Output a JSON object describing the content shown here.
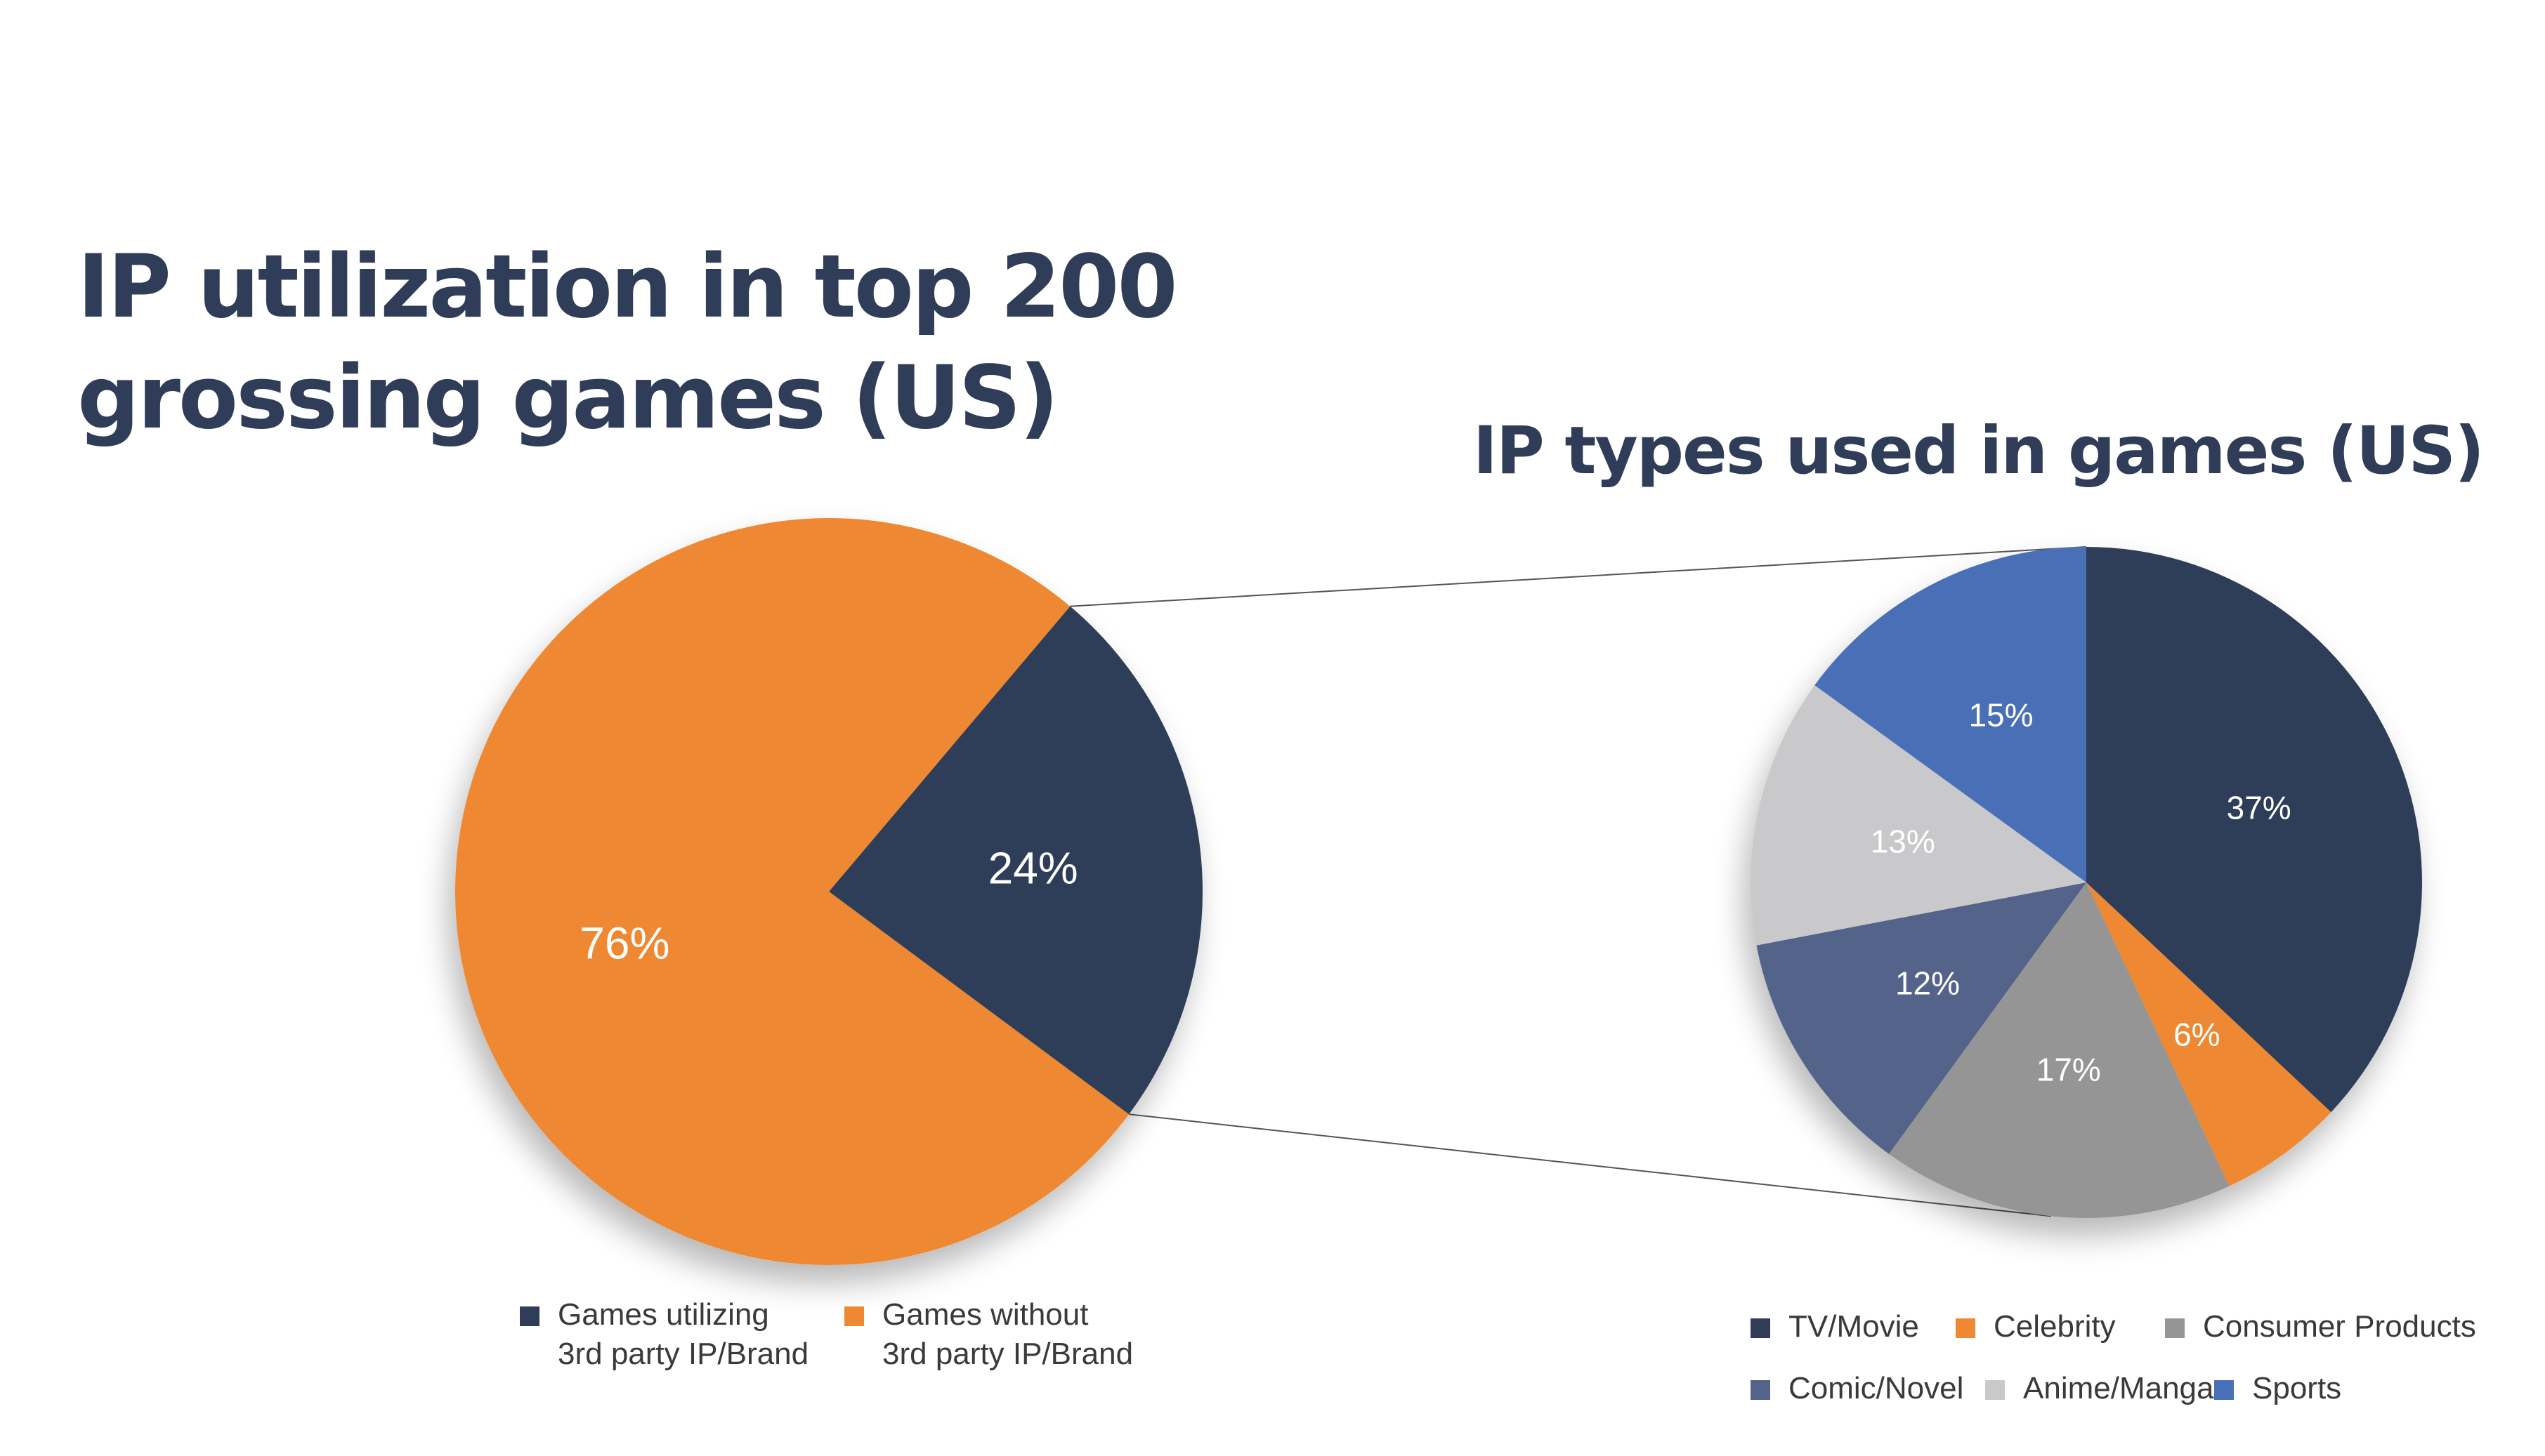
{
  "titles": {
    "main_line1": "IP utilization in top 200",
    "main_line2": "grossing games (US)",
    "right": "IP types used in games (US)"
  },
  "colors": {
    "navy": "#2f3d58",
    "orange": "#ef8832",
    "gray": "#959595",
    "slate": "#536389",
    "light_gray": "#c9c9cb",
    "blue": "#4870b6",
    "connector": "#555555"
  },
  "chart_data": [
    {
      "type": "pie",
      "title": "IP utilization in top 200 grossing games (US)",
      "slices": [
        {
          "label": "Games utilizing 3rd party IP/Brand",
          "value": 24,
          "data_label": "24%",
          "color": "#2f3d58"
        },
        {
          "label": "Games without 3rd party IP/Brand",
          "value": 76,
          "data_label": "76%",
          "color": "#ef8832"
        }
      ],
      "legend_position": "bottom"
    },
    {
      "type": "pie",
      "title": "IP types used in games (US)",
      "slices": [
        {
          "label": "TV/Movie",
          "value": 37,
          "data_label": "37%",
          "color": "#2f3d58"
        },
        {
          "label": "Celebrity",
          "value": 6,
          "data_label": "6%",
          "color": "#ef8832"
        },
        {
          "label": "Consumer Products",
          "value": 17,
          "data_label": "17%",
          "color": "#959595"
        },
        {
          "label": "Comic/Novel",
          "value": 12,
          "data_label": "12%",
          "color": "#536389"
        },
        {
          "label": "Anime/Manga",
          "value": 13,
          "data_label": "13%",
          "color": "#c9c9cb"
        },
        {
          "label": "Sports",
          "value": 15,
          "data_label": "15%",
          "color": "#4870b6"
        }
      ],
      "legend_position": "bottom"
    }
  ],
  "legend_left": [
    {
      "line1": "Games utilizing",
      "line2": "3rd party IP/Brand",
      "color": "#2f3d58"
    },
    {
      "line1": "Games without",
      "line2": "3rd party IP/Brand",
      "color": "#ef8832"
    }
  ],
  "legend_right": [
    {
      "label": "TV/Movie",
      "color": "#2f3d58"
    },
    {
      "label": "Celebrity",
      "color": "#ef8832"
    },
    {
      "label": "Consumer Products",
      "color": "#959595"
    },
    {
      "label": "Comic/Novel",
      "color": "#536389"
    },
    {
      "label": "Anime/Manga",
      "color": "#c9c9cb"
    },
    {
      "label": "Sports",
      "color": "#4870b6"
    }
  ]
}
